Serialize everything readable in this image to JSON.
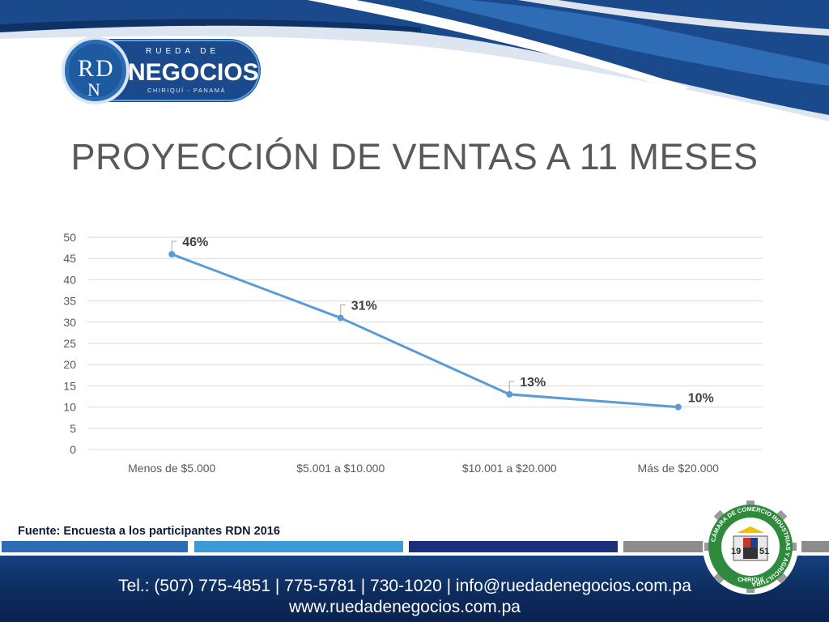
{
  "logo": {
    "monogram_r": "R",
    "monogram_d": "D",
    "monogram_n": "N",
    "top_text": "RUEDA DE",
    "main_text": "NEGOCIOS",
    "sub_text": "CHIRIQUÍ - PANAMÁ"
  },
  "title": "PROYECCIÓN DE VENTAS A 11 MESES",
  "chart_data": {
    "type": "line",
    "categories": [
      "Menos de $5.000",
      "$5.001 a $10.000",
      "$10.001 a $20.000",
      "Más de $20.000"
    ],
    "values": [
      46,
      31,
      13,
      10
    ],
    "data_labels": [
      "46%",
      "31%",
      "13%",
      "10%"
    ],
    "yticks": [
      "0",
      "5",
      "10",
      "15",
      "20",
      "25",
      "30",
      "35",
      "40",
      "45",
      "50"
    ],
    "ylim": [
      0,
      50
    ],
    "grid": true,
    "line_color": "#5b9bd5"
  },
  "source": "Fuente: Encuesta a los participantes RDN 2016",
  "footer": {
    "line1": "Tel.: (507) 775-4851 | 775-5781 | 730-1020 | info@ruedadenegocios.com.pa",
    "line2": "www.ruedadenegocios.com.pa"
  },
  "seal": {
    "ring_text": "CÁMARA DE COMERCIO INDUSTRIAS Y AGRICULTURA",
    "bottom_text": "CHIRIQUÍ",
    "year_left": "19",
    "year_right": "51"
  },
  "colors": {
    "dark_blue": "#1b4a8c",
    "mid_blue": "#2e6db5",
    "light_blue": "#3c9ad6",
    "navy": "#1b2f7a",
    "gray": "#8c8c8c",
    "seal_green": "#2f8a3e"
  }
}
